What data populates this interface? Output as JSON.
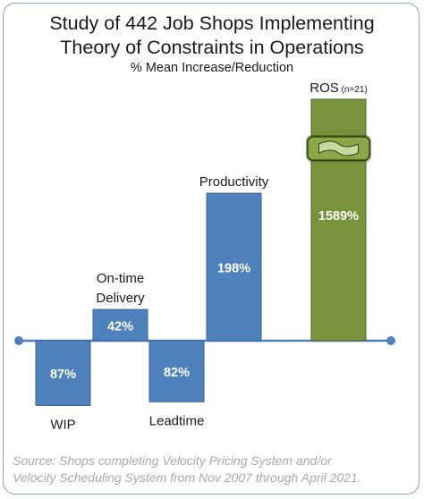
{
  "chart_data": {
    "type": "bar",
    "title": "Study of 442 Job Shops Implementing Theory of Constraints in Operations",
    "title_lines": [
      "Study of 442 Job Shops Implementing",
      "Theory of Constraints in Operations"
    ],
    "subtitle": "% Mean Increase/Reduction",
    "categories": [
      "WIP",
      "On-time Delivery",
      "Leadtime",
      "Productivity",
      "ROS"
    ],
    "category_lines": [
      [
        "WIP"
      ],
      [
        "On-time",
        "Delivery"
      ],
      [
        "Leadtime"
      ],
      [
        "Productivity"
      ],
      [
        "ROS"
      ]
    ],
    "category_notes": [
      "",
      "",
      "",
      "",
      "(n=21)"
    ],
    "values": [
      -87,
      42,
      -82,
      198,
      1589
    ],
    "data_labels": [
      "87%",
      "42%",
      "82%",
      "198%",
      "1589%"
    ],
    "colors": [
      "#4f81bd",
      "#4f81bd",
      "#4f81bd",
      "#4f81bd",
      "#77933c"
    ],
    "axis_broken_bar": "ROS",
    "xlabel": "",
    "ylabel": "",
    "grid": false,
    "legend": "none",
    "source_lines": [
      "Source: Shops completing Velocity Pricing System and/or",
      "Velocity Scheduling System  from Nov 2007 through April 2021."
    ]
  },
  "colors": {
    "bar_blue": "#4f81bd",
    "bar_green": "#77933c",
    "baseline": "#4f81bd",
    "source_text": "#a9a9a9"
  }
}
